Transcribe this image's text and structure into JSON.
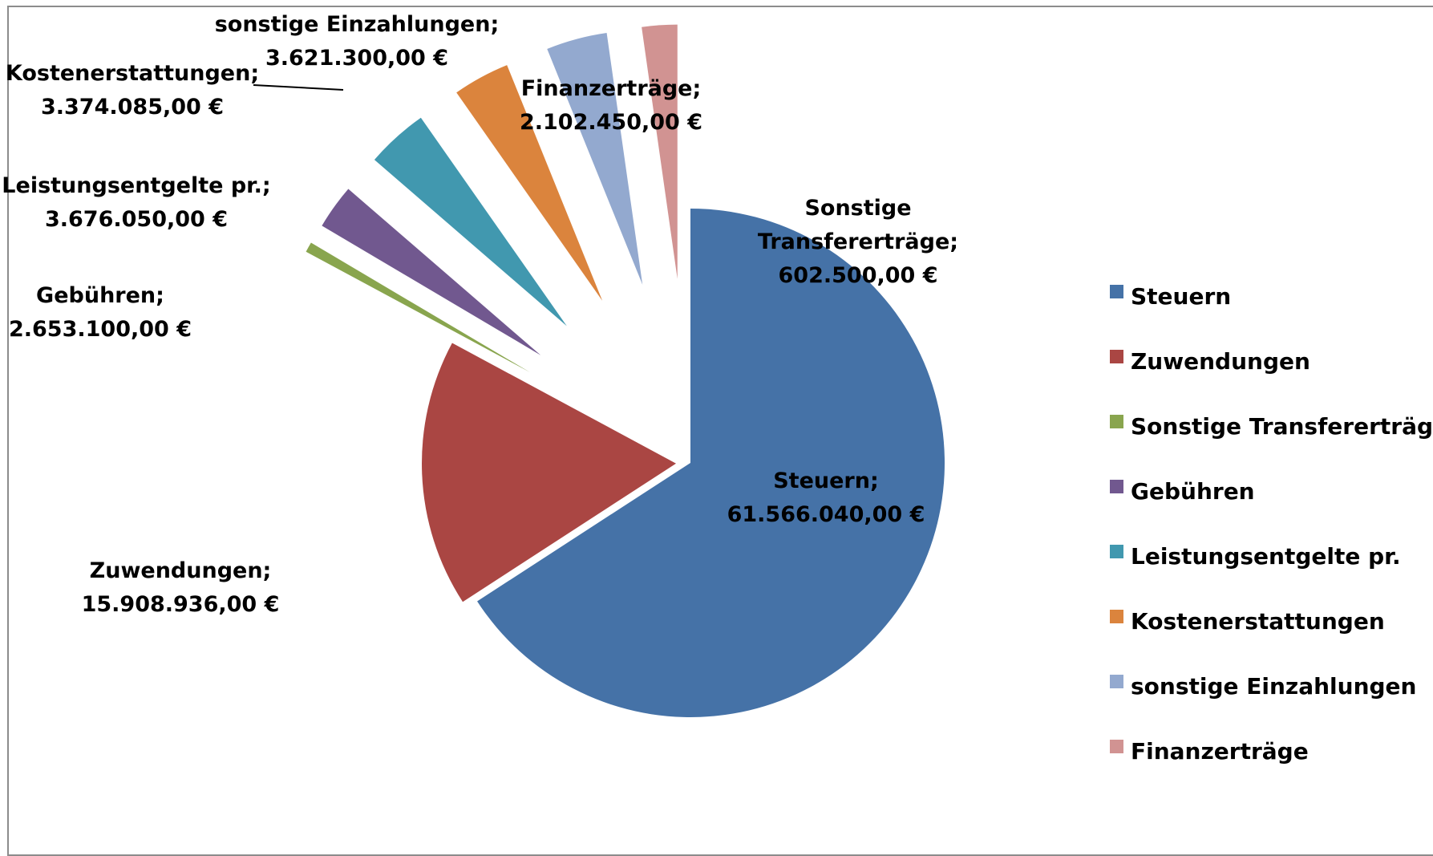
{
  "chart_data": {
    "type": "pie",
    "exploded": true,
    "categories": [
      "Steuern",
      "Zuwendungen",
      "Sonstige Transfererträge",
      "Gebühren",
      "Leistungsentgelte pr.",
      "Kostenerstattungen",
      "sonstige Einzahlungen",
      "Finanzerträge"
    ],
    "values": [
      61566040.0,
      15908936.0,
      602500.0,
      2653100.0,
      3676050.0,
      3374085.0,
      3621300.0,
      2102450.0
    ],
    "colors": [
      "#4572a7",
      "#aa4643",
      "#89a54e",
      "#71588f",
      "#4198af",
      "#db843d",
      "#93a9cf",
      "#d19392"
    ],
    "data_labels": [
      {
        "name": "Steuern;",
        "value": "61.566.040,00 €"
      },
      {
        "name": "Zuwendungen;",
        "value": "15.908.936,00 €"
      },
      {
        "name_lines": [
          "Sonstige",
          "Transfererträge;"
        ],
        "value": "602.500,00 €"
      },
      {
        "name": "Gebühren;",
        "value": "2.653.100,00 €"
      },
      {
        "name": "Leistungsentgelte pr.;",
        "value": "3.676.050,00 €"
      },
      {
        "name": "Kostenerstattungen;",
        "value": "3.374.085,00 €"
      },
      {
        "name": "sonstige Einzahlungen;",
        "value": "3.621.300,00 €"
      },
      {
        "name": "Finanzerträge;",
        "value": "2.102.450,00 €"
      }
    ],
    "legend": {
      "position": "right",
      "entries": [
        "Steuern",
        "Zuwendungen",
        "Sonstige Transfererträge",
        "Gebühren",
        "Leistungsentgelte pr.",
        "Kostenerstattungen",
        "sonstige Einzahlungen",
        "Finanzerträge"
      ]
    }
  }
}
